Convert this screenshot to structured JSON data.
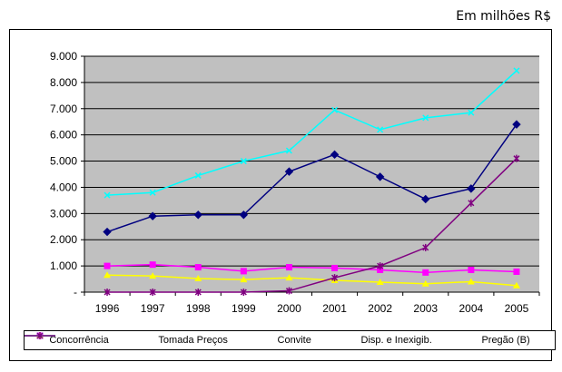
{
  "unit_note": "Em milhões R$",
  "chart_data": {
    "type": "line",
    "title": "",
    "xlabel": "",
    "ylabel": "",
    "categories": [
      "1996",
      "1997",
      "1998",
      "1999",
      "2000",
      "2001",
      "2002",
      "2003",
      "2004",
      "2005"
    ],
    "ylim": [
      0,
      9000
    ],
    "yticks": [
      0,
      1000,
      2000,
      3000,
      4000,
      5000,
      6000,
      7000,
      8000,
      9000
    ],
    "ytick_labels": [
      "-",
      "1.000",
      "2.000",
      "3.000",
      "4.000",
      "5.000",
      "6.000",
      "7.000",
      "8.000",
      "9.000"
    ],
    "grid": true,
    "plot_background": "#c0c0c0",
    "legend_position": "bottom",
    "series": [
      {
        "name": "Concorrência",
        "color": "#000080",
        "marker": "diamond",
        "values": [
          2300,
          2900,
          2950,
          2950,
          4600,
          5250,
          4400,
          3550,
          3950,
          6400
        ]
      },
      {
        "name": "Tomada Preços",
        "color": "#ff00ff",
        "marker": "square",
        "values": [
          1000,
          1050,
          950,
          800,
          950,
          920,
          850,
          750,
          850,
          780
        ]
      },
      {
        "name": "Convite",
        "color": "#ffff00",
        "marker": "triangle",
        "values": [
          650,
          620,
          520,
          480,
          550,
          450,
          380,
          320,
          400,
          250
        ]
      },
      {
        "name": "Disp. e Inexigib.",
        "color": "#00ffff",
        "marker": "x",
        "values": [
          3700,
          3800,
          4450,
          5000,
          5400,
          6950,
          6200,
          6650,
          6850,
          8450
        ]
      },
      {
        "name": "Pregão (B)",
        "color": "#800080",
        "marker": "star",
        "values": [
          0,
          0,
          0,
          0,
          50,
          550,
          1000,
          1700,
          3400,
          5100
        ]
      }
    ]
  }
}
